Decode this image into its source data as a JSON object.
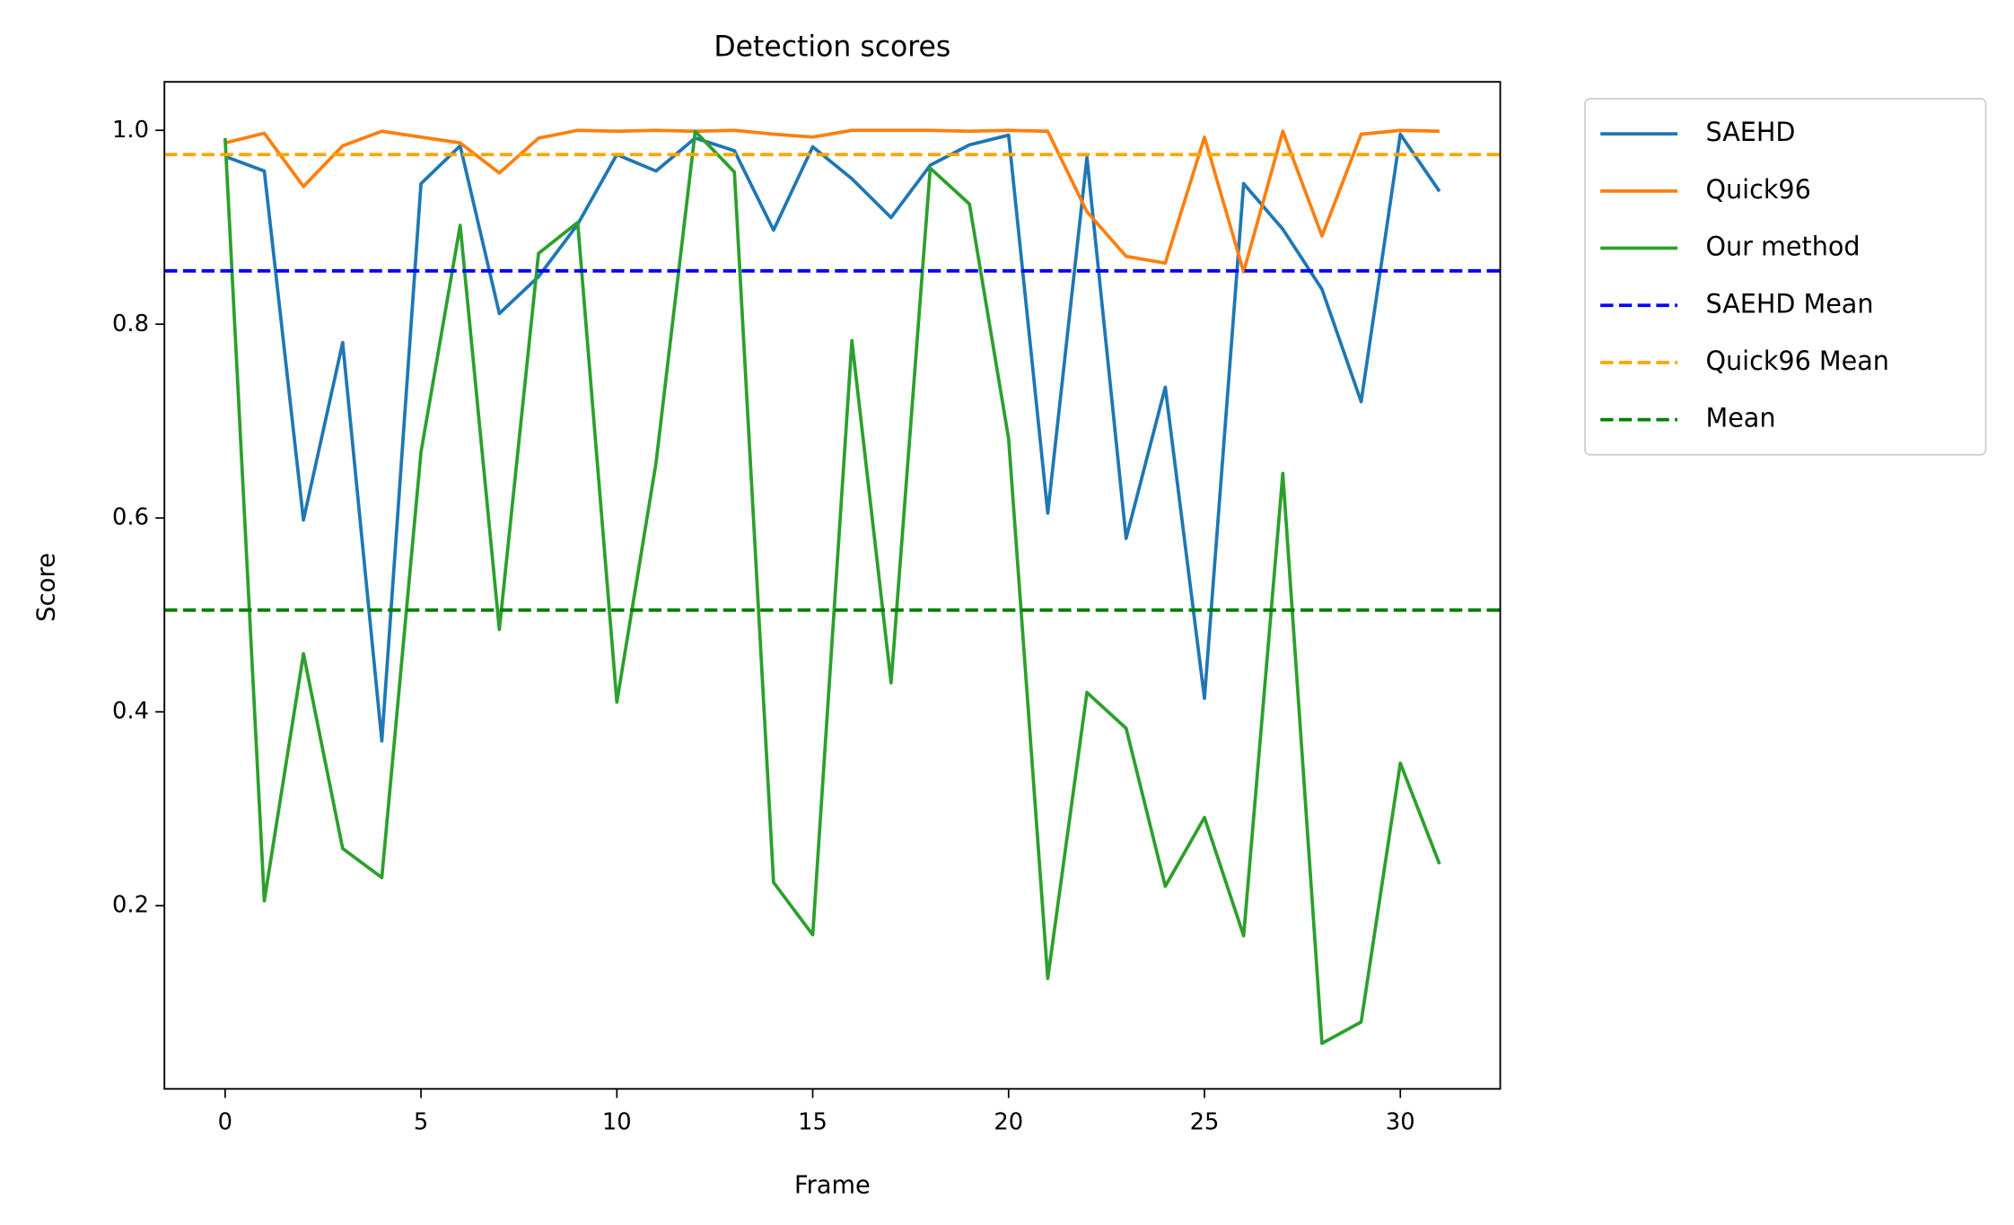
{
  "chart_data": {
    "type": "line",
    "title": "Detection scores",
    "xlabel": "Frame",
    "ylabel": "Score",
    "x": [
      0,
      1,
      2,
      3,
      4,
      5,
      6,
      7,
      8,
      9,
      10,
      11,
      12,
      13,
      14,
      15,
      16,
      17,
      18,
      19,
      20,
      21,
      22,
      23,
      24,
      25,
      26,
      27,
      28,
      29,
      30,
      31
    ],
    "series": [
      {
        "name": "SAEHD",
        "color": "#1f77b4",
        "values": [
          0.973,
          0.958,
          0.598,
          0.781,
          0.37,
          0.945,
          0.984,
          0.811,
          0.849,
          0.903,
          0.975,
          0.958,
          0.992,
          0.979,
          0.897,
          0.983,
          0.95,
          0.91,
          0.964,
          0.985,
          0.995,
          0.605,
          0.972,
          0.579,
          0.735,
          0.414,
          0.945,
          0.898,
          0.836,
          0.72,
          0.996,
          0.937
        ]
      },
      {
        "name": "Quick96",
        "color": "#ff7f0e",
        "values": [
          0.987,
          0.997,
          0.942,
          0.984,
          0.999,
          0.993,
          0.987,
          0.956,
          0.992,
          1.0,
          0.999,
          1.0,
          0.999,
          1.0,
          0.996,
          0.993,
          1.0,
          1.0,
          1.0,
          0.999,
          1.0,
          0.999,
          0.916,
          0.87,
          0.863,
          0.993,
          0.854,
          0.999,
          0.891,
          0.996,
          1.0,
          0.999
        ]
      },
      {
        "name": "Our method",
        "color": "#2ca02c",
        "values": [
          0.992,
          0.205,
          0.46,
          0.259,
          0.229,
          0.668,
          0.902,
          0.485,
          0.873,
          0.905,
          0.41,
          0.657,
          0.999,
          0.957,
          0.224,
          0.17,
          0.783,
          0.43,
          0.961,
          0.924,
          0.682,
          0.125,
          0.42,
          0.383,
          0.22,
          0.291,
          0.169,
          0.646,
          0.058,
          0.08,
          0.347,
          0.243
        ]
      }
    ],
    "mean_lines": [
      {
        "name": "SAEHD Mean",
        "color": "#0000ff",
        "value": 0.855
      },
      {
        "name": "Quick96 Mean",
        "color": "#ffa500",
        "value": 0.975
      },
      {
        "name": "Mean",
        "color": "#008000",
        "value": 0.505
      }
    ],
    "xlim": [
      -1.55,
      32.55
    ],
    "xticks": [
      0,
      5,
      10,
      15,
      20,
      25,
      30
    ],
    "ylim": [
      0.011,
      1.05
    ],
    "yticks": [
      0.2,
      0.4,
      0.6,
      0.8,
      {
        "value": 1,
        "label": "1.0"
      }
    ],
    "legend": "outside-upper-right"
  }
}
